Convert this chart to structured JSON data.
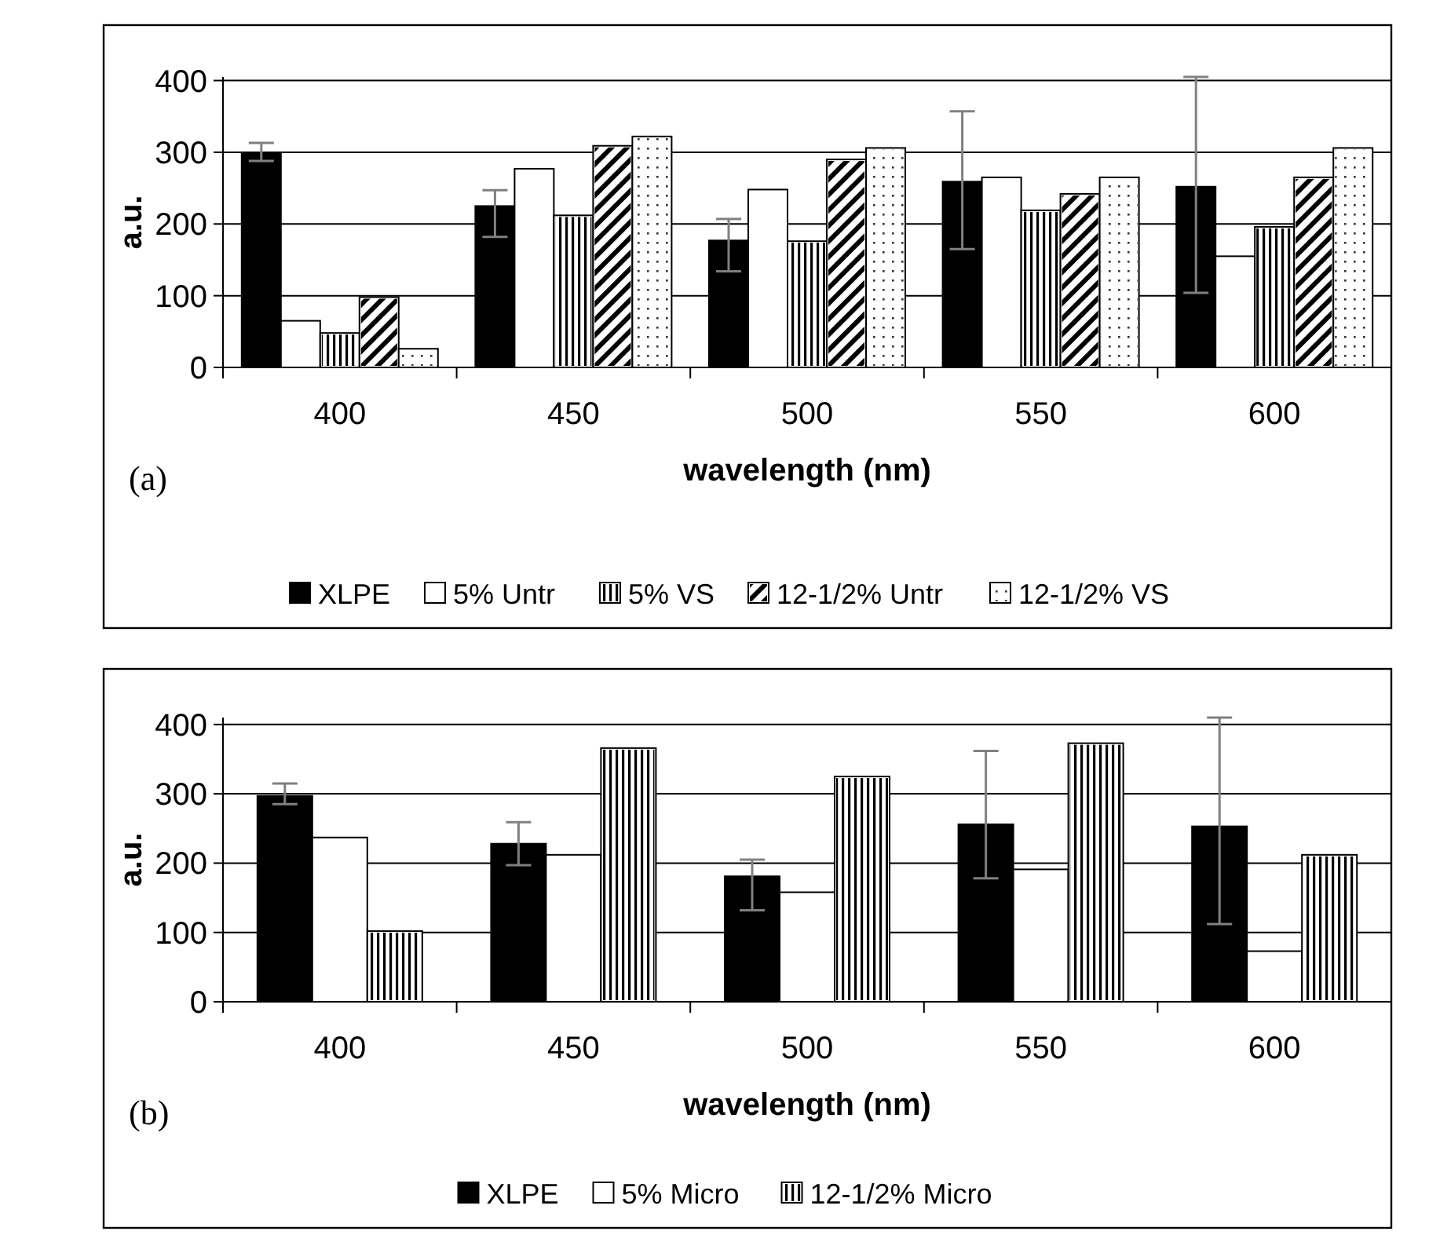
{
  "chart_data": [
    {
      "type": "bar",
      "xlabel": "wavelength (nm)",
      "ylabel": "a.u.",
      "annotations": [
        "(a)"
      ],
      "categories": [
        "400",
        "450",
        "500",
        "550",
        "600"
      ],
      "ylim": [
        0,
        405
      ],
      "yticks": [
        0,
        100,
        200,
        300,
        400
      ],
      "grid": "y",
      "legend": "bottom",
      "series": [
        {
          "name": "XLPE",
          "color": "#000000",
          "values": [
            298,
            225,
            177,
            259,
            252
          ],
          "errors": [
            [
              288,
              313
            ],
            [
              182,
              247
            ],
            [
              134,
              207
            ],
            [
              165,
              357
            ],
            [
              104,
              405
            ]
          ]
        },
        {
          "name": "5% Untr",
          "color": "#ffffff",
          "values": [
            65,
            277,
            248,
            265,
            155
          ]
        },
        {
          "name": "5% VS",
          "color": "#ffffff",
          "values": [
            48,
            212,
            176,
            219,
            196
          ]
        },
        {
          "name": "12-1/2% Untr",
          "color": "#ffffff",
          "values": [
            98,
            309,
            290,
            242,
            265
          ]
        },
        {
          "name": "12-1/2% VS",
          "color": "#ffffff",
          "values": [
            26,
            322,
            306,
            265,
            306
          ]
        }
      ]
    },
    {
      "type": "bar",
      "xlabel": "wavelength (nm)",
      "ylabel": "a.u.",
      "annotations": [
        "(b)"
      ],
      "categories": [
        "400",
        "450",
        "500",
        "550",
        "600"
      ],
      "ylim": [
        0,
        410
      ],
      "yticks": [
        0,
        100,
        200,
        300,
        400
      ],
      "grid": "y",
      "legend": "bottom",
      "series": [
        {
          "name": "XLPE",
          "color": "#000000",
          "values": [
            297,
            228,
            181,
            256,
            253
          ],
          "errors": [
            [
              285,
              315
            ],
            [
              197,
              259
            ],
            [
              132,
              205
            ],
            [
              178,
              362
            ],
            [
              112,
              410
            ]
          ]
        },
        {
          "name": "5% Micro",
          "color": "#ffffff",
          "values": [
            237,
            212,
            158,
            191,
            73
          ]
        },
        {
          "name": "12-1/2% Micro",
          "color": "#ffffff",
          "values": [
            102,
            366,
            325,
            373,
            212
          ]
        }
      ]
    }
  ]
}
